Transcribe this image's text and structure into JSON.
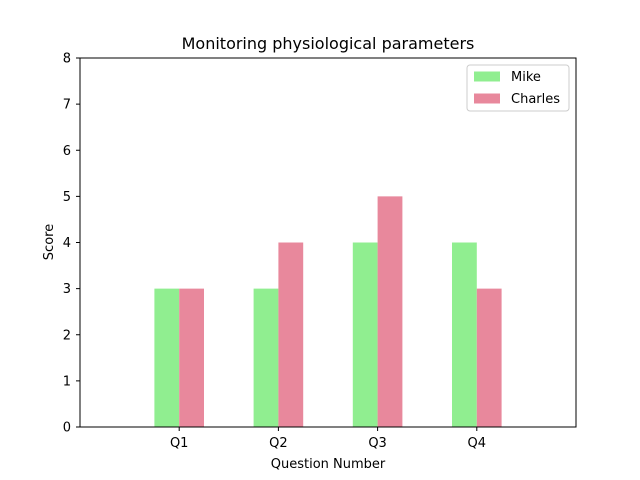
{
  "chart_data": {
    "type": "bar",
    "title": "Monitoring physiological parameters",
    "xlabel": "Question Number",
    "ylabel": "Score",
    "categories": [
      "Q1",
      "Q2",
      "Q3",
      "Q4"
    ],
    "ylim": [
      0,
      8
    ],
    "yticks": [
      0,
      1,
      2,
      3,
      4,
      5,
      6,
      7,
      8
    ],
    "series": [
      {
        "name": "Mike",
        "values": [
          3,
          3,
          4,
          4
        ],
        "color": "#90ee90"
      },
      {
        "name": "Charles",
        "values": [
          3,
          4,
          5,
          3
        ],
        "color": "#e8889c"
      }
    ],
    "legend_position": "top-right",
    "grid": false
  }
}
